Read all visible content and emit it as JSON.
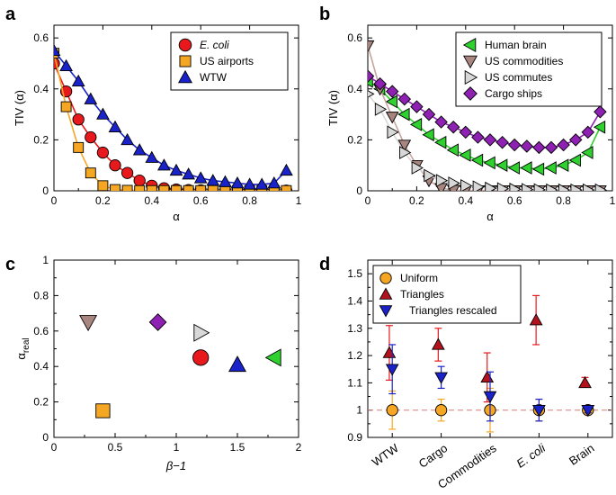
{
  "colors": {
    "red": "#e8191c",
    "orange": "#f5a623",
    "blue": "#1a23c9",
    "green": "#2fd12f",
    "brown": "#a8857f",
    "gray": "#d8d8d8",
    "purple": "#8e21b3",
    "pink": "#d77a7a",
    "darkred": "#b3121c",
    "line_orange": "#f5a623",
    "line_red": "#e8191c",
    "line_blue": "#1a23c9",
    "line_green": "#2fd12f",
    "line_brown": "#c9a49e",
    "line_gray": "#d8d8d8",
    "line_purple": "#8e21b3"
  },
  "chart_data": [
    {
      "panel": "a",
      "type": "line",
      "xlabel": "α",
      "ylabel": "TIV (α)",
      "xlim": [
        0,
        1
      ],
      "ylim": [
        0,
        0.65
      ],
      "xticks": [
        "0",
        "0.2",
        "0.4",
        "0.6",
        "0.8",
        "1"
      ],
      "yticks": [
        "0",
        "0.2",
        "0.4",
        "0.6"
      ],
      "legend_position": "top-right",
      "series": [
        {
          "name": "E. coli",
          "italic": true,
          "marker": "circle",
          "color_key": "red",
          "line_key": "line_red",
          "x": [
            0,
            0.05,
            0.1,
            0.15,
            0.2,
            0.25,
            0.3,
            0.35,
            0.4,
            0.45,
            0.5,
            0.55,
            0.6,
            0.65,
            0.7,
            0.75,
            0.8,
            0.85,
            0.9,
            0.95
          ],
          "y": [
            0.5,
            0.39,
            0.28,
            0.21,
            0.15,
            0.1,
            0.07,
            0.04,
            0.02,
            0.01,
            0.005,
            0.003,
            0.002,
            0.001,
            0.001,
            0.001,
            0.001,
            0.001,
            0.001,
            0.001
          ]
        },
        {
          "name": "US airports",
          "italic": false,
          "marker": "square",
          "color_key": "orange",
          "line_key": "line_orange",
          "x": [
            0,
            0.05,
            0.1,
            0.15,
            0.2,
            0.25,
            0.3,
            0.35,
            0.4,
            0.45,
            0.5,
            0.55,
            0.6,
            0.65,
            0.7,
            0.75,
            0.8,
            0.85,
            0.9,
            0.95
          ],
          "y": [
            0.54,
            0.33,
            0.17,
            0.07,
            0.02,
            0.005,
            0.002,
            0.001,
            0.001,
            0.001,
            0.001,
            0.001,
            0.001,
            0.001,
            0.001,
            0.001,
            0.001,
            0.001,
            0.001,
            0.001
          ]
        },
        {
          "name": "WTW",
          "italic": false,
          "marker": "triangle-up",
          "color_key": "blue",
          "line_key": "line_blue",
          "x": [
            0,
            0.05,
            0.1,
            0.15,
            0.2,
            0.25,
            0.3,
            0.35,
            0.4,
            0.45,
            0.5,
            0.55,
            0.6,
            0.65,
            0.7,
            0.75,
            0.8,
            0.85,
            0.9,
            0.95
          ],
          "y": [
            0.55,
            0.49,
            0.43,
            0.36,
            0.3,
            0.25,
            0.2,
            0.16,
            0.13,
            0.1,
            0.08,
            0.065,
            0.05,
            0.04,
            0.035,
            0.03,
            0.025,
            0.025,
            0.03,
            0.08
          ]
        }
      ]
    },
    {
      "panel": "b",
      "type": "line",
      "xlabel": "α",
      "ylabel": "TIV (α)",
      "xlim": [
        0,
        1
      ],
      "ylim": [
        0,
        0.65
      ],
      "xticks": [
        "0",
        "0.2",
        "0.4",
        "0.6",
        "0.8",
        "1"
      ],
      "yticks": [
        "0",
        "0.2",
        "0.4",
        "0.6"
      ],
      "legend_position": "top-right",
      "series": [
        {
          "name": "Human brain",
          "italic": false,
          "marker": "triangle-left",
          "color_key": "green",
          "line_key": "line_green",
          "x": [
            0,
            0.05,
            0.1,
            0.15,
            0.2,
            0.25,
            0.3,
            0.35,
            0.4,
            0.45,
            0.5,
            0.55,
            0.6,
            0.65,
            0.7,
            0.75,
            0.8,
            0.85,
            0.9,
            0.95
          ],
          "y": [
            0.43,
            0.4,
            0.35,
            0.3,
            0.26,
            0.22,
            0.19,
            0.16,
            0.14,
            0.12,
            0.11,
            0.1,
            0.09,
            0.09,
            0.085,
            0.09,
            0.1,
            0.12,
            0.15,
            0.25
          ]
        },
        {
          "name": "US commodities",
          "italic": false,
          "marker": "triangle-down",
          "color_key": "brown",
          "line_key": "line_brown",
          "x": [
            0,
            0.05,
            0.1,
            0.15,
            0.2,
            0.25,
            0.3,
            0.35,
            0.4,
            0.45,
            0.5,
            0.55,
            0.6,
            0.65,
            0.7,
            0.75,
            0.8,
            0.85,
            0.9,
            0.95
          ],
          "y": [
            0.57,
            0.4,
            0.29,
            0.18,
            0.1,
            0.04,
            0.01,
            0.003,
            0.001,
            0.001,
            0.001,
            0.001,
            0.001,
            0.001,
            0.001,
            0.001,
            0.001,
            0.001,
            0.001,
            0.001
          ]
        },
        {
          "name": "US commutes",
          "italic": false,
          "marker": "triangle-right",
          "color_key": "gray",
          "line_key": "line_gray",
          "x": [
            0,
            0.05,
            0.1,
            0.15,
            0.2,
            0.25,
            0.3,
            0.35,
            0.4,
            0.45,
            0.5,
            0.55,
            0.6,
            0.65,
            0.7,
            0.75,
            0.8,
            0.85,
            0.9,
            0.95
          ],
          "y": [
            0.38,
            0.32,
            0.23,
            0.15,
            0.09,
            0.06,
            0.04,
            0.03,
            0.02,
            0.015,
            0.01,
            0.008,
            0.006,
            0.005,
            0.004,
            0.003,
            0.003,
            0.003,
            0.003,
            0.003
          ]
        },
        {
          "name": "Cargo ships",
          "italic": false,
          "marker": "diamond",
          "color_key": "purple",
          "line_key": "line_purple",
          "x": [
            0,
            0.05,
            0.1,
            0.15,
            0.2,
            0.25,
            0.3,
            0.35,
            0.4,
            0.45,
            0.5,
            0.55,
            0.6,
            0.65,
            0.7,
            0.75,
            0.8,
            0.85,
            0.9,
            0.95
          ],
          "y": [
            0.45,
            0.42,
            0.39,
            0.36,
            0.33,
            0.3,
            0.27,
            0.25,
            0.23,
            0.21,
            0.2,
            0.19,
            0.18,
            0.175,
            0.17,
            0.17,
            0.18,
            0.2,
            0.23,
            0.31
          ]
        }
      ]
    },
    {
      "panel": "c",
      "type": "scatter",
      "xlabel": "β−1",
      "ylabel": "α",
      "ylabel_sub": "real",
      "xlim": [
        0,
        2
      ],
      "ylim": [
        0,
        1
      ],
      "xticks": [
        "0",
        "0.5",
        "1",
        "1.5",
        "2"
      ],
      "yticks": [
        "0",
        "0.2",
        "0.4",
        "0.6",
        "0.8",
        "1"
      ],
      "points": [
        {
          "name": "US commodities",
          "marker": "triangle-down",
          "color_key": "brown",
          "x": 0.28,
          "y": 0.65
        },
        {
          "name": "US airports",
          "marker": "square",
          "color_key": "orange",
          "x": 0.4,
          "y": 0.15
        },
        {
          "name": "Cargo ships",
          "marker": "diamond",
          "color_key": "purple",
          "x": 0.85,
          "y": 0.65
        },
        {
          "name": "US commutes",
          "marker": "triangle-right",
          "color_key": "gray",
          "x": 1.2,
          "y": 0.59
        },
        {
          "name": "E. coli",
          "marker": "circle",
          "color_key": "red",
          "x": 1.2,
          "y": 0.45
        },
        {
          "name": "WTW",
          "marker": "triangle-up",
          "color_key": "blue",
          "x": 1.5,
          "y": 0.41
        },
        {
          "name": "Human brain",
          "marker": "triangle-left",
          "color_key": "green",
          "x": 1.8,
          "y": 0.45
        }
      ]
    },
    {
      "panel": "d",
      "type": "scatter",
      "categories": [
        "WTW",
        "Cargo",
        "Commodities",
        "E. coli",
        "Brain"
      ],
      "categories_italic": [
        false,
        false,
        false,
        true,
        false
      ],
      "xlim": [
        0,
        5
      ],
      "ylim": [
        0.9,
        1.55
      ],
      "yticks": [
        "0.9",
        "1",
        "1.1",
        "1.2",
        "1.3",
        "1.4",
        "1.5"
      ],
      "reference_line": 1.0,
      "legend_position": "top-left",
      "series": [
        {
          "name": "Uniform",
          "marker": "circle",
          "color_key": "orange",
          "err_key": "orange",
          "offset": 0,
          "values": [
            1.0,
            1.0,
            1.0,
            1.0,
            1.0
          ],
          "err_low": [
            0.93,
            0.96,
            0.92,
            0.96,
            0.99
          ],
          "err_high": [
            1.07,
            1.04,
            1.08,
            1.04,
            1.01
          ]
        },
        {
          "name": "Triangles",
          "marker": "triangle-up",
          "color_key": "darkred",
          "err_key": "red",
          "offset": -0.06,
          "values": [
            1.21,
            1.24,
            1.12,
            1.33,
            1.1
          ],
          "err_low": [
            1.11,
            1.18,
            1.03,
            1.24,
            1.09
          ],
          "err_high": [
            1.31,
            1.3,
            1.21,
            1.42,
            1.12
          ]
        },
        {
          "name": "Triangles rescaled",
          "marker": "triangle-down",
          "color_key": "blue",
          "err_key": "blue",
          "offset": 0,
          "values": [
            1.15,
            1.12,
            1.05,
            1.0,
            1.0
          ],
          "err_low": [
            1.06,
            1.08,
            0.96,
            0.96,
            0.99
          ],
          "err_high": [
            1.24,
            1.16,
            1.14,
            1.04,
            1.01
          ]
        }
      ]
    }
  ],
  "panel_labels": [
    "a",
    "b",
    "c",
    "d"
  ]
}
